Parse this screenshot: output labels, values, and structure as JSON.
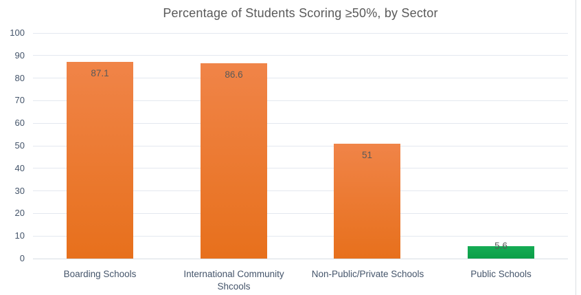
{
  "chart_data": {
    "type": "bar",
    "title": "Percentage of Students Scoring ≥50%, by Sector",
    "categories": [
      "Boarding Schools",
      "International Community Shcools",
      "Non-Public/Private Schools",
      "Public Schools"
    ],
    "values": [
      87.1,
      86.6,
      51,
      5.6
    ],
    "data_labels": [
      "87.1",
      "86.6",
      "51",
      "5.6"
    ],
    "bar_color_keys": [
      "orange",
      "orange",
      "orange",
      "green"
    ],
    "xlabel": "",
    "ylabel": "",
    "ylim": [
      0,
      100
    ],
    "ytick_step": 10,
    "ytick_labels": [
      "0",
      "10",
      "20",
      "30",
      "40",
      "50",
      "60",
      "70",
      "80",
      "90",
      "100"
    ],
    "grid": true,
    "legend": "none",
    "data_label_position": "inside-end"
  },
  "colors": {
    "orange_top": "#F08448",
    "orange_bottom": "#E7701C",
    "green_top": "#15AC55",
    "green_bottom": "#0B9E48",
    "gridline": "#E3E8EF",
    "axis_line": "#D7DDE5",
    "tick_label": "#44546A",
    "category_label": "#44546A",
    "title": "#595959",
    "data_label": "#595959",
    "right_border": "#DBDEE3"
  }
}
